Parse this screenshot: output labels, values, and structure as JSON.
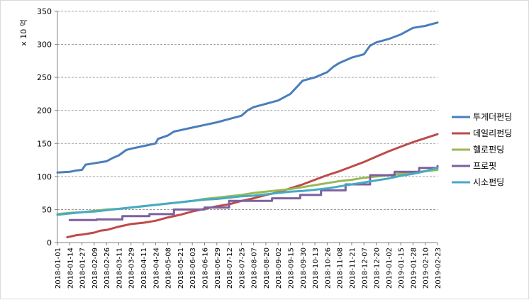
{
  "chart_data": {
    "type": "line",
    "ylabel": "x 10 억",
    "ylim": [
      0,
      350
    ],
    "yticks": [
      0,
      50,
      100,
      150,
      200,
      250,
      300,
      350
    ],
    "grid": "horizontal-dashed",
    "legend_position": "right",
    "x_tick_labels": [
      "2018-01-01",
      "2018-01-14",
      "2018-01-27",
      "2018-02-09",
      "2018-02-26",
      "2018-03-11",
      "2018-03-29",
      "2018-04-11",
      "2018-04-24",
      "2018-05-08",
      "2018-05-21",
      "2018-06-03",
      "2018-06-16",
      "2018-06-29",
      "2018-07-12",
      "2018-07-25",
      "2018-08-07",
      "2018-08-20",
      "2018-09-02",
      "2018-09-15",
      "2018-09-30",
      "2018-10-13",
      "2018-10-26",
      "2018-11-08",
      "2018-11-21",
      "2018-12-07",
      "2018-12-20",
      "2019-01-02",
      "2019-01-15",
      "2019-01-28",
      "2019-02-10",
      "2019-02-23"
    ],
    "series": [
      {
        "name": "투게더펀딩",
        "color": "#4a7ebb",
        "points": [
          [
            0,
            106
          ],
          [
            1,
            107
          ],
          [
            1.5,
            109
          ],
          [
            2,
            110
          ],
          [
            2.3,
            118
          ],
          [
            3,
            120
          ],
          [
            4,
            123
          ],
          [
            4.5,
            128
          ],
          [
            5,
            132
          ],
          [
            5.6,
            140
          ],
          [
            6,
            142
          ],
          [
            7,
            146
          ],
          [
            7.5,
            148
          ],
          [
            8,
            150
          ],
          [
            8.2,
            157
          ],
          [
            9,
            162
          ],
          [
            9.5,
            168
          ],
          [
            10,
            170
          ],
          [
            11,
            174
          ],
          [
            12,
            178
          ],
          [
            13,
            182
          ],
          [
            14,
            187
          ],
          [
            15,
            192
          ],
          [
            15.5,
            200
          ],
          [
            16,
            205
          ],
          [
            17,
            210
          ],
          [
            18,
            215
          ],
          [
            19,
            225
          ],
          [
            19.5,
            235
          ],
          [
            20,
            245
          ],
          [
            21,
            250
          ],
          [
            22,
            258
          ],
          [
            22.5,
            266
          ],
          [
            23,
            272
          ],
          [
            24,
            280
          ],
          [
            25,
            285
          ],
          [
            25.5,
            298
          ],
          [
            26,
            303
          ],
          [
            27,
            308
          ],
          [
            28,
            315
          ],
          [
            28.5,
            320
          ],
          [
            29,
            325
          ],
          [
            30,
            328
          ],
          [
            31,
            333
          ]
        ]
      },
      {
        "name": "데일리펀딩",
        "color": "#be4b48",
        "points": [
          [
            0.8,
            8
          ],
          [
            1.5,
            11
          ],
          [
            2,
            12
          ],
          [
            3,
            15
          ],
          [
            3.5,
            18
          ],
          [
            4,
            19
          ],
          [
            5,
            24
          ],
          [
            6,
            28
          ],
          [
            7,
            30
          ],
          [
            8,
            33
          ],
          [
            9,
            38
          ],
          [
            10,
            42
          ],
          [
            11,
            47
          ],
          [
            12,
            51
          ],
          [
            13,
            55
          ],
          [
            14,
            58
          ],
          [
            15,
            63
          ],
          [
            16,
            67
          ],
          [
            17,
            72
          ],
          [
            18,
            76
          ],
          [
            19,
            82
          ],
          [
            20,
            88
          ],
          [
            21,
            95
          ],
          [
            22,
            102
          ],
          [
            23,
            108
          ],
          [
            24,
            115
          ],
          [
            25,
            122
          ],
          [
            26,
            130
          ],
          [
            27,
            138
          ],
          [
            28,
            145
          ],
          [
            29,
            152
          ],
          [
            29.5,
            155
          ],
          [
            30,
            158
          ],
          [
            31,
            164
          ]
        ]
      },
      {
        "name": "헬로펀딩",
        "color": "#98b954",
        "points": [
          [
            0,
            43
          ],
          [
            1,
            45
          ],
          [
            2,
            46
          ],
          [
            3,
            48
          ],
          [
            4,
            50
          ],
          [
            5,
            51
          ],
          [
            6,
            53
          ],
          [
            7,
            55
          ],
          [
            8,
            57
          ],
          [
            9,
            59
          ],
          [
            10,
            61
          ],
          [
            11,
            63
          ],
          [
            12,
            66
          ],
          [
            13,
            68
          ],
          [
            14,
            70
          ],
          [
            15,
            72
          ],
          [
            16,
            75
          ],
          [
            17,
            77
          ],
          [
            18,
            79
          ],
          [
            19,
            81
          ],
          [
            20,
            84
          ],
          [
            21,
            87
          ],
          [
            22,
            90
          ],
          [
            23,
            93
          ],
          [
            24,
            95
          ],
          [
            25,
            98
          ],
          [
            26,
            100
          ],
          [
            27,
            102
          ],
          [
            28,
            104
          ],
          [
            29,
            106
          ],
          [
            30,
            108
          ],
          [
            31,
            110
          ]
        ]
      },
      {
        "name": "프로핏",
        "color": "#7d60a0",
        "points": [
          [
            1,
            34
          ],
          [
            3.2,
            34
          ],
          [
            3.2,
            35
          ],
          [
            5.3,
            35
          ],
          [
            5.3,
            40
          ],
          [
            7.5,
            40
          ],
          [
            7.5,
            43
          ],
          [
            9.5,
            43
          ],
          [
            9.5,
            50
          ],
          [
            12,
            50
          ],
          [
            12,
            53
          ],
          [
            14,
            53
          ],
          [
            14,
            63
          ],
          [
            17.5,
            63
          ],
          [
            17.5,
            67
          ],
          [
            19.8,
            67
          ],
          [
            19.8,
            72
          ],
          [
            21.5,
            72
          ],
          [
            21.5,
            79
          ],
          [
            23.5,
            79
          ],
          [
            23.5,
            88
          ],
          [
            25.5,
            88
          ],
          [
            25.5,
            102
          ],
          [
            27.5,
            102
          ],
          [
            27.5,
            107
          ],
          [
            29.5,
            107
          ],
          [
            29.5,
            113
          ],
          [
            31,
            113
          ],
          [
            31,
            116
          ]
        ]
      },
      {
        "name": "시소펀딩",
        "color": "#46aac5",
        "points": [
          [
            0,
            42
          ],
          [
            1,
            44
          ],
          [
            2,
            46
          ],
          [
            3,
            47
          ],
          [
            4,
            49
          ],
          [
            5,
            51
          ],
          [
            6,
            53
          ],
          [
            7,
            55
          ],
          [
            8,
            57
          ],
          [
            9,
            59
          ],
          [
            10,
            61
          ],
          [
            11,
            63
          ],
          [
            12,
            65
          ],
          [
            13,
            66
          ],
          [
            14,
            68
          ],
          [
            15,
            70
          ],
          [
            16,
            71
          ],
          [
            17,
            73
          ],
          [
            18,
            75
          ],
          [
            19,
            77
          ],
          [
            20,
            78
          ],
          [
            21,
            80
          ],
          [
            22,
            82
          ],
          [
            23,
            85
          ],
          [
            24,
            88
          ],
          [
            25,
            91
          ],
          [
            26,
            94
          ],
          [
            27,
            97
          ],
          [
            28,
            101
          ],
          [
            29,
            104
          ],
          [
            30,
            108
          ],
          [
            31,
            113
          ]
        ]
      }
    ]
  }
}
